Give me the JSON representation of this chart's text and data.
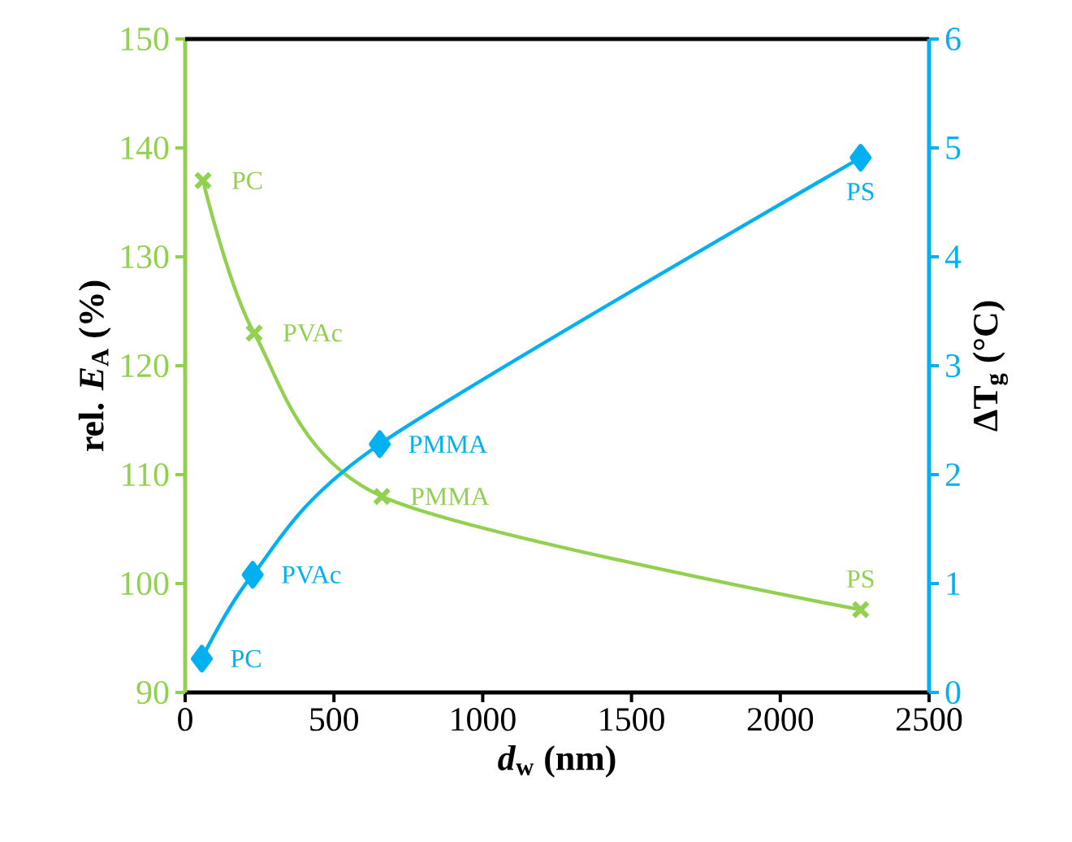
{
  "chart_data": {
    "type": "line",
    "xlabel": "*d*$_{w}$ (nm)",
    "ylabel": "rel. *E*$_{A}$ (%)",
    "y2label": "ΔT$_{g}$ (°C)",
    "xlim": [
      0,
      2500
    ],
    "xticks": [
      0,
      500,
      1000,
      1500,
      2000,
      2500
    ],
    "ylim": [
      90,
      150
    ],
    "yticks": [
      90,
      100,
      110,
      120,
      130,
      140,
      150
    ],
    "y2lim": [
      0,
      6
    ],
    "y2ticks": [
      0,
      1,
      2,
      3,
      4,
      5,
      6
    ],
    "grid": false,
    "series": [
      {
        "color": "#92d050",
        "marker": "cross",
        "x": [
          60,
          232,
          661,
          2270
        ],
        "values": [
          137,
          123,
          108,
          97.6
        ],
        "value_labels": [
          "PC",
          "PVAc",
          "PMMA",
          "PS"
        ]
      },
      {
        "color": "#00b0f0",
        "marker": "diamond",
        "axis": "y2",
        "x": [
          56,
          227,
          654,
          2270
        ],
        "values": [
          0.31,
          1.08,
          2.28,
          4.91
        ],
        "value_labels": [
          "PC",
          "PVAc",
          "PMMA",
          "PS"
        ]
      }
    ]
  }
}
